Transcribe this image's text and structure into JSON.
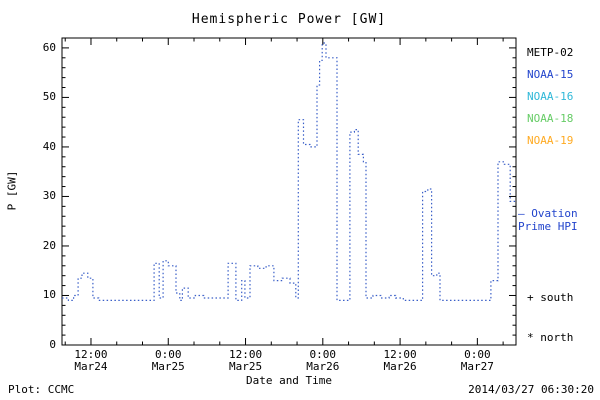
{
  "chart_data": {
    "type": "line",
    "step": true,
    "line_style": "dotted",
    "line_color": "#3a5fc8",
    "title": "Hemispheric Power [GW]",
    "xlabel": "Date and Time",
    "ylabel": "P [GW]",
    "x_range_hours_from_Mar24_0000": [
      7.5,
      78
    ],
    "y_range": [
      0,
      62
    ],
    "y_ticks": [
      0,
      10,
      20,
      30,
      40,
      50,
      60
    ],
    "x_ticks": [
      {
        "t": 12,
        "time": "12:00",
        "date": "Mar24"
      },
      {
        "t": 24,
        "time": "0:00",
        "date": "Mar25"
      },
      {
        "t": 36,
        "time": "12:00",
        "date": "Mar25"
      },
      {
        "t": 48,
        "time": "0:00",
        "date": "Mar26"
      },
      {
        "t": 60,
        "time": "12:00",
        "date": "Mar26"
      },
      {
        "t": 72,
        "time": "0:00",
        "date": "Mar27"
      }
    ],
    "points_t_hours_vs_P_GW": [
      [
        7.5,
        9.5
      ],
      [
        8.5,
        9
      ],
      [
        9.3,
        10
      ],
      [
        10.0,
        13.5
      ],
      [
        10.6,
        14.5
      ],
      [
        11.5,
        13.5
      ],
      [
        12.3,
        9.5
      ],
      [
        13.2,
        9
      ],
      [
        21.4,
        9
      ],
      [
        21.8,
        16.5
      ],
      [
        22.6,
        9.5
      ],
      [
        23.2,
        17
      ],
      [
        24.0,
        16
      ],
      [
        25.2,
        10.5
      ],
      [
        25.8,
        9
      ],
      [
        26.2,
        11.5
      ],
      [
        27.1,
        9.5
      ],
      [
        28.2,
        10
      ],
      [
        29.5,
        9.5
      ],
      [
        32.8,
        9.5
      ],
      [
        33.3,
        16.5
      ],
      [
        34.5,
        9
      ],
      [
        35.4,
        13
      ],
      [
        35.9,
        9.5
      ],
      [
        36.7,
        16
      ],
      [
        37.9,
        15.5
      ],
      [
        39.2,
        16
      ],
      [
        40.4,
        13
      ],
      [
        41.7,
        13.5
      ],
      [
        42.9,
        12.5
      ],
      [
        43.8,
        9.5
      ],
      [
        44.2,
        45.5
      ],
      [
        45.0,
        40.5
      ],
      [
        46.0,
        40
      ],
      [
        47.1,
        52.5
      ],
      [
        47.5,
        57.5
      ],
      [
        47.9,
        61
      ],
      [
        48.5,
        58
      ],
      [
        49.7,
        58
      ],
      [
        50.2,
        9
      ],
      [
        51.8,
        9
      ],
      [
        52.2,
        43
      ],
      [
        52.9,
        43.5
      ],
      [
        53.5,
        38.5
      ],
      [
        54.3,
        37
      ],
      [
        54.7,
        9.5
      ],
      [
        55.8,
        10
      ],
      [
        57.0,
        9.5
      ],
      [
        58.3,
        10
      ],
      [
        59.3,
        9.5
      ],
      [
        60.5,
        9
      ],
      [
        63.2,
        9
      ],
      [
        63.5,
        31
      ],
      [
        64.3,
        31.5
      ],
      [
        64.9,
        14
      ],
      [
        65.7,
        14.5
      ],
      [
        66.2,
        9
      ],
      [
        70.0,
        9
      ],
      [
        73.8,
        9
      ],
      [
        74.1,
        13
      ],
      [
        75.2,
        37
      ],
      [
        76.2,
        36.5
      ],
      [
        77.1,
        29
      ],
      [
        78.0,
        29
      ]
    ]
  },
  "legend": {
    "items": [
      {
        "label": "METP-02",
        "color": "#000000"
      },
      {
        "label": "NOAA-15",
        "color": "#2244cc"
      },
      {
        "label": "NOAA-16",
        "color": "#2fb8d8"
      },
      {
        "label": "NOAA-18",
        "color": "#66cc66"
      },
      {
        "label": "NOAA-19",
        "color": "#ffaa22"
      }
    ]
  },
  "annotations": {
    "ovation_line1": "— Ovation",
    "ovation_line2": "Prime HPI",
    "ovation_color": "#2244cc",
    "south": "+ south",
    "north": "* north"
  },
  "footer": {
    "plot_source": "Plot: CCMC",
    "timestamp": "2014/03/27 06:30:20"
  }
}
